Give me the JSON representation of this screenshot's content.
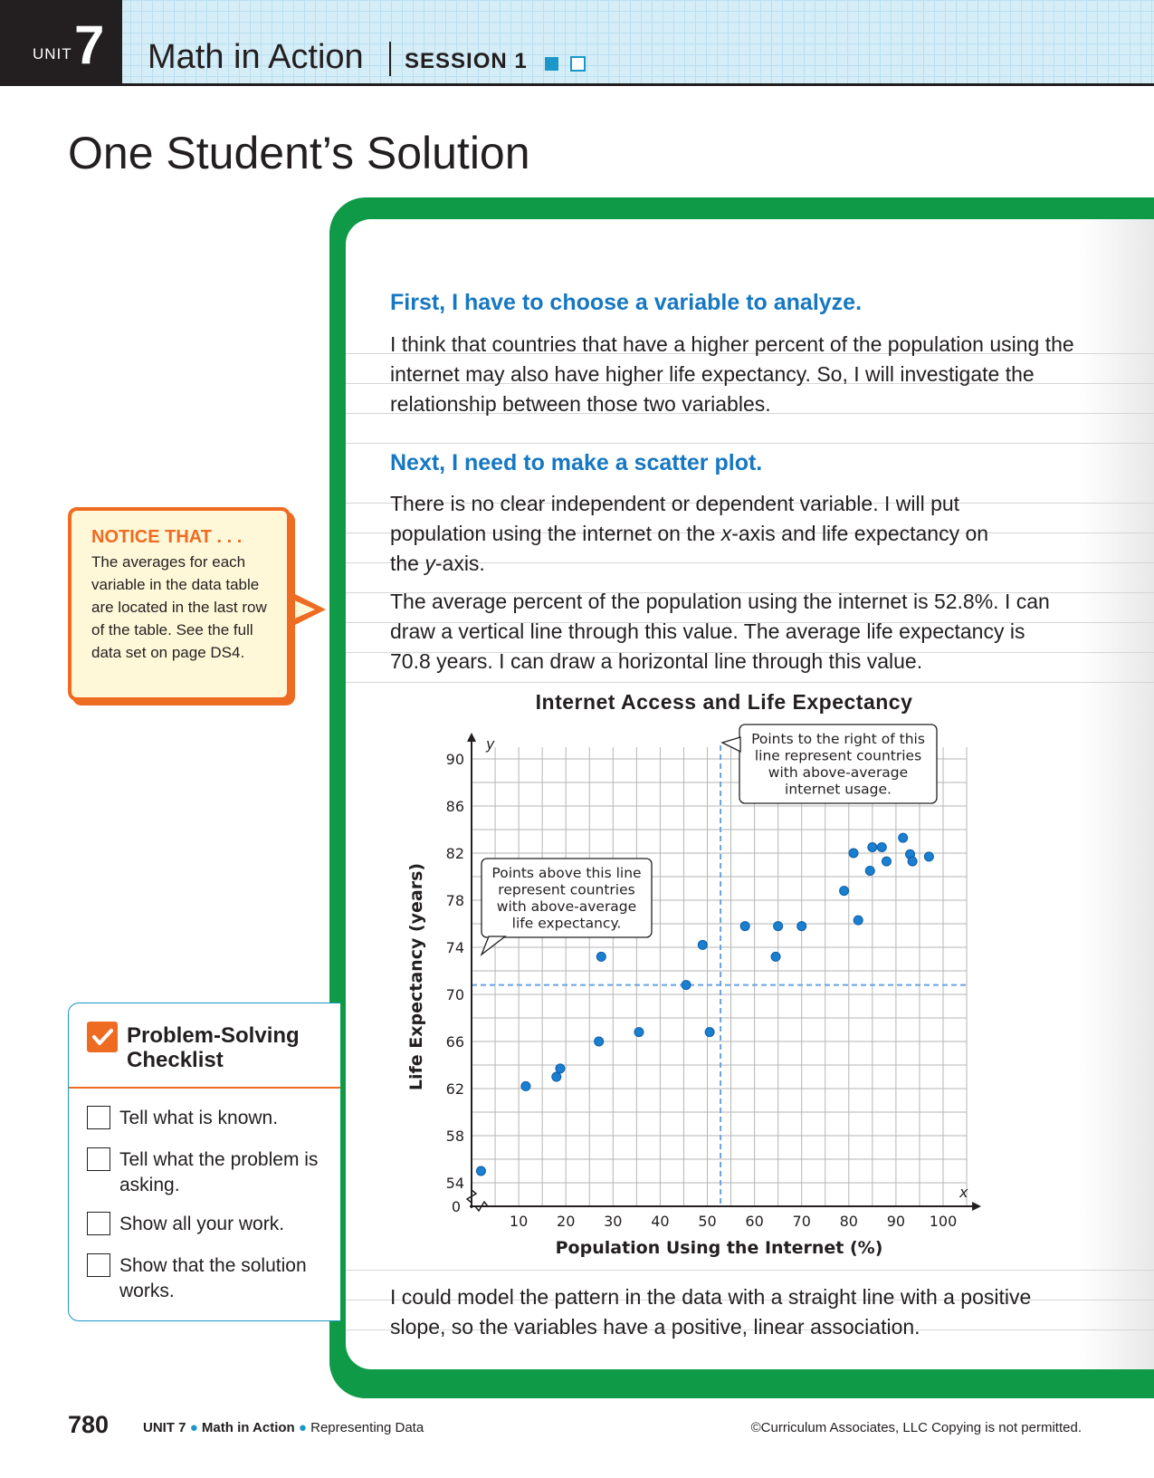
{
  "header": {
    "unit_word": "UNIT",
    "unit_number": "7",
    "title": "Math in Action",
    "session": "SESSION 1"
  },
  "page_title": "One Student’s Solution",
  "notice": {
    "heading": "NOTICE THAT . . .",
    "text": "The averages for each variable in the data table are located in the last row of the table. See the full data set on page DS4."
  },
  "checklist": {
    "title": "Problem-Solving Checklist",
    "items": [
      "Tell what is known.",
      "Tell what the problem is asking.",
      "Show all your work.",
      "Show that the solution works."
    ]
  },
  "content": {
    "heading1": "First, I have to choose a variable to analyze.",
    "para1": "I think that countries that have a higher percent of the population using the internet may also have higher life expectancy. So, I will investigate the relationship between those two variables.",
    "heading2": "Next, I need to make a scatter plot.",
    "para2_a": "There is no clear independent or dependent variable. I will put population using the internet on the ",
    "para2_x": "x",
    "para2_b": "-axis and life expectancy on the ",
    "para2_y": "y",
    "para2_c": "-axis.",
    "para3": "The average percent of the population using the internet is 52.8%. I can draw a vertical line through this value. The average life expectancy is 70.8 years. I can draw a horizontal line through this value.",
    "para4": "I could model the pattern in the data with a straight line with a positive slope, so the variables have a positive, linear association."
  },
  "chart_data": {
    "type": "scatter",
    "title": "Internet Access and Life Expectancy",
    "xlabel": "Population Using the Internet (%)",
    "ylabel": "Life Expectancy (years)",
    "x_axis_letter": "x",
    "y_axis_letter": "y",
    "xlim": [
      0,
      105
    ],
    "ylim": [
      52,
      91
    ],
    "x_ticks": [
      10,
      20,
      30,
      40,
      50,
      60,
      70,
      80,
      90,
      100
    ],
    "y_ticks": [
      54,
      58,
      62,
      66,
      70,
      74,
      78,
      82,
      86,
      90
    ],
    "origin_label": "0",
    "grid": true,
    "points": [
      {
        "x": 2,
        "y": 55
      },
      {
        "x": 11.5,
        "y": 62.2
      },
      {
        "x": 18,
        "y": 63
      },
      {
        "x": 18.8,
        "y": 63.7
      },
      {
        "x": 27,
        "y": 66
      },
      {
        "x": 27.5,
        "y": 73.2
      },
      {
        "x": 35.5,
        "y": 66.8
      },
      {
        "x": 45.5,
        "y": 70.8
      },
      {
        "x": 49,
        "y": 74.2
      },
      {
        "x": 50.5,
        "y": 66.8
      },
      {
        "x": 58,
        "y": 75.8
      },
      {
        "x": 65,
        "y": 75.8
      },
      {
        "x": 64.5,
        "y": 73.2
      },
      {
        "x": 70,
        "y": 75.8
      },
      {
        "x": 79,
        "y": 78.8
      },
      {
        "x": 81,
        "y": 82
      },
      {
        "x": 82,
        "y": 76.3
      },
      {
        "x": 84.5,
        "y": 80.5
      },
      {
        "x": 85,
        "y": 82.5
      },
      {
        "x": 87,
        "y": 82.5
      },
      {
        "x": 88,
        "y": 81.3
      },
      {
        "x": 91.5,
        "y": 83.3
      },
      {
        "x": 93,
        "y": 81.9
      },
      {
        "x": 93.5,
        "y": 81.3
      },
      {
        "x": 97,
        "y": 81.7
      }
    ],
    "mean_x": 52.8,
    "mean_y": 70.8,
    "annotations": [
      {
        "text_lines": [
          "Points to the right of this",
          "line represent countries",
          "with above-average",
          "internet usage."
        ]
      },
      {
        "text_lines": [
          "Points above this line",
          "represent countries",
          "with above-average",
          "life expectancy."
        ]
      }
    ],
    "colors": {
      "points": "#1a7fd0",
      "mean_lines": "#6aa3df"
    }
  },
  "footer": {
    "page_number": "780",
    "unit_label": "UNIT 7",
    "section": "Math in Action",
    "topic": "Representing Data",
    "copyright": "©Curriculum Associates, LLC   Copying is not permitted."
  },
  "colors": {
    "accent_blue": "#1677c2",
    "green": "#0f9a47",
    "orange": "#ee6b22"
  }
}
